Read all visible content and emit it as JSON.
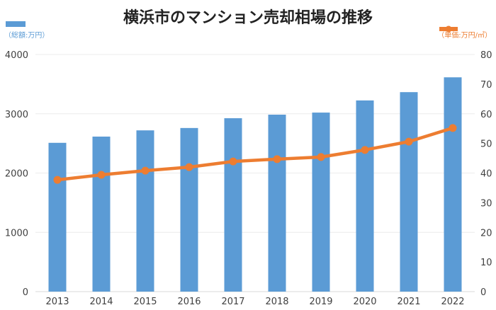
{
  "chart_data": {
    "type": "bar+line",
    "title": "横浜市のマンション売却相場の推移",
    "categories": [
      "2013",
      "2014",
      "2015",
      "2016",
      "2017",
      "2018",
      "2019",
      "2020",
      "2021",
      "2022"
    ],
    "series": [
      {
        "name": "（総額:万円）",
        "type": "bar",
        "axis": "left",
        "color": "#5b9bd5",
        "values": [
          2510,
          2615,
          2720,
          2760,
          2925,
          2985,
          3020,
          3225,
          3365,
          3615
        ]
      },
      {
        "name": "（単価:万円/㎡）",
        "type": "line",
        "axis": "right",
        "color": "#ed7d31",
        "values": [
          37.7,
          39.4,
          40.8,
          42.0,
          43.9,
          44.7,
          45.4,
          47.8,
          50.6,
          55.2
        ]
      }
    ],
    "yleft": {
      "lim": [
        0,
        4000
      ],
      "ticks": [
        "0",
        "1000",
        "2000",
        "3000",
        "4000"
      ]
    },
    "yright": {
      "lim": [
        0,
        80
      ],
      "ticks": [
        "0",
        "10",
        "20",
        "30",
        "40",
        "50",
        "60",
        "70",
        "80"
      ]
    },
    "grid": true,
    "legend": "top-left and top-right"
  }
}
